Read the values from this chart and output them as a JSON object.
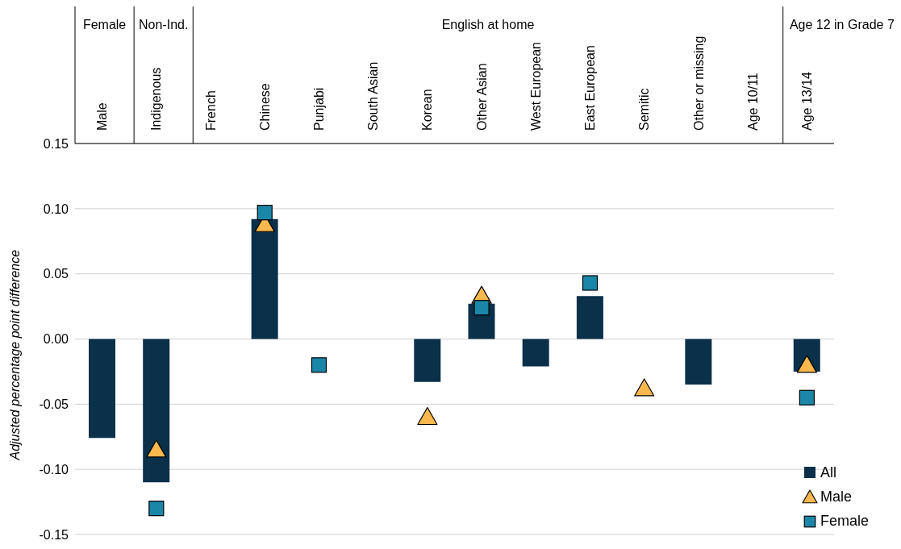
{
  "chart_data": {
    "type": "bar",
    "ylabel": "Adjusted percentage point difference",
    "categories": [
      "Male",
      "Indigenous",
      "French",
      "Chinese",
      "Punjabi",
      "South Asian",
      "Korean",
      "Other Asian",
      "West European",
      "East European",
      "Semitic",
      "Other or missing",
      "Age 10/11",
      "Age 13/14"
    ],
    "series": [
      {
        "name": "All",
        "color": "#0b3049",
        "values": [
          -0.076,
          -0.11,
          null,
          0.092,
          null,
          null,
          -0.033,
          0.027,
          -0.021,
          0.033,
          null,
          -0.035,
          null,
          -0.025
        ]
      },
      {
        "name": "Male",
        "type": "scatter",
        "marker": "triangle",
        "color": "#f8b84e",
        "values": [
          null,
          -0.085,
          null,
          0.088,
          null,
          null,
          -0.06,
          0.033,
          null,
          null,
          -0.038,
          null,
          null,
          -0.02
        ]
      },
      {
        "name": "Female",
        "type": "scatter",
        "marker": "square",
        "color": "#1a86a8",
        "values": [
          null,
          -0.13,
          null,
          0.097,
          -0.02,
          null,
          null,
          0.024,
          null,
          0.043,
          null,
          null,
          null,
          -0.045
        ]
      }
    ],
    "ylim": [
      -0.15,
      0.15
    ],
    "yticks": [
      {
        "value": -0.15,
        "label": "-0.15"
      },
      {
        "value": -0.1,
        "label": "-0.10"
      },
      {
        "value": -0.05,
        "label": "-0.05"
      },
      {
        "value": 0,
        "label": "0.00"
      },
      {
        "value": 0.05,
        "label": "0.05"
      },
      {
        "value": 0.1,
        "label": "0.10"
      },
      {
        "value": 0.15,
        "label": "0.15"
      }
    ],
    "grid": "y",
    "legend": "bottom right",
    "annotations": [
      "Female",
      "Non-Ind.",
      "English at home",
      "Age 12 in Grade 7"
    ]
  }
}
